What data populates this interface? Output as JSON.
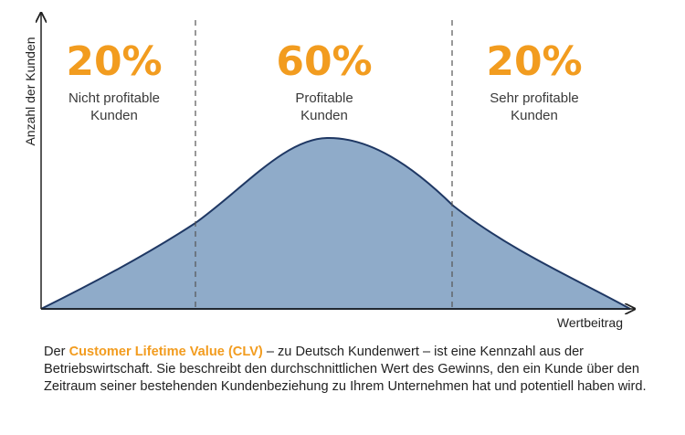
{
  "chart_data": {
    "type": "area",
    "xlabel": "Wertbeitrag",
    "ylabel": "Anzahl der Kunden",
    "segments": [
      {
        "percent": "20%",
        "label_lines": [
          "Nicht profitable",
          "Kunden"
        ]
      },
      {
        "percent": "60%",
        "label_lines": [
          "Profitable",
          "Kunden"
        ]
      },
      {
        "percent": "20%",
        "label_lines": [
          "Sehr profitable",
          "Kunden"
        ]
      }
    ],
    "segment_shares": [
      0.2,
      0.6,
      0.2
    ],
    "grid": false,
    "legend": "none"
  },
  "colors": {
    "accent": "#f29c1f",
    "area_fill": "#8fabc9",
    "area_stroke": "#1f3864",
    "divider": "#555555"
  },
  "caption": {
    "prefix": "Der ",
    "highlight": "Customer Lifetime Value (CLV)",
    "text": " – zu Deutsch Kundenwert – ist eine Kennzahl aus der Betriebswirtschaft. Sie beschreibt den durchschnittlichen Wert des Gewinns, den ein Kunde über den Zeitraum seiner bestehenden Kundenbeziehung zu Ihrem Unternehmen hat und potentiell haben wird."
  }
}
